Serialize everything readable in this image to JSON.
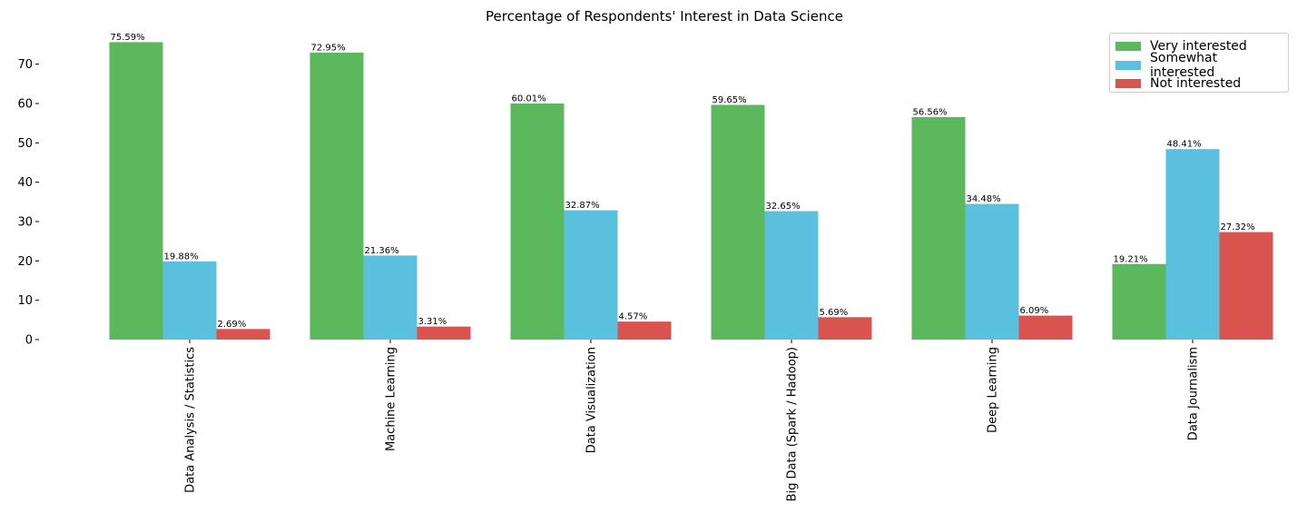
{
  "chart_data": {
    "type": "bar",
    "title": "Percentage of Respondents' Interest in Data Science",
    "xlabel": "",
    "ylabel": "",
    "ylim": [
      0,
      78
    ],
    "yticks": [
      0,
      10,
      20,
      30,
      40,
      50,
      60,
      70
    ],
    "grid": false,
    "legend_position": "top-right",
    "categories": [
      "Data Analysis / Statistics",
      "Machine Learning",
      "Data Visualization",
      "Big Data (Spark / Hadoop)",
      "Deep Learning",
      "Data Journalism"
    ],
    "series": [
      {
        "name": "Very interested",
        "color": "#5cb85c",
        "values": [
          75.59,
          72.95,
          60.01,
          59.65,
          56.56,
          19.21
        ],
        "labels": [
          "75.59%",
          "72.95%",
          "60.01%",
          "59.65%",
          "56.56%",
          "19.21%"
        ]
      },
      {
        "name": "Somewhat interested",
        "color": "#5bc0de",
        "values": [
          19.88,
          21.36,
          32.87,
          32.65,
          34.48,
          48.41
        ],
        "labels": [
          "19.88%",
          "21.36%",
          "32.87%",
          "32.65%",
          "34.48%",
          "48.41%"
        ]
      },
      {
        "name": "Not interested",
        "color": "#d9534f",
        "values": [
          2.69,
          3.31,
          4.57,
          5.69,
          6.09,
          27.32
        ],
        "labels": [
          "2.69%",
          "3.31%",
          "4.57%",
          "5.69%",
          "6.09%",
          "27.32%"
        ]
      }
    ]
  }
}
